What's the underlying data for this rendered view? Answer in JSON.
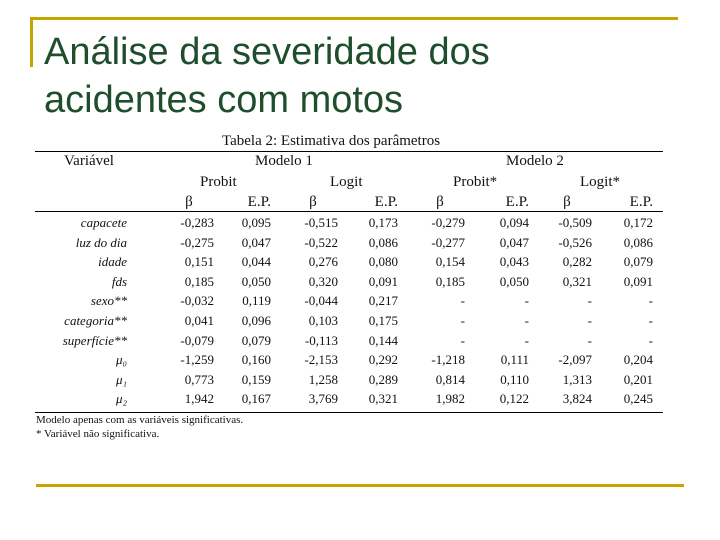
{
  "slide": {
    "title_line1": "Análise da severidade dos",
    "title_line2": "acidentes com motos"
  },
  "table": {
    "caption": "Tabela 2: Estimativa dos parâmetros",
    "header": {
      "variable": "Variável",
      "model1": "Modelo 1",
      "model2": "Modelo 2",
      "probit": "Probit",
      "logit": "Logit",
      "probit_star": "Probit*",
      "logit_star": "Logit*",
      "beta": "β",
      "ep": "E.P."
    },
    "rows": [
      {
        "var": "capacete",
        "v": [
          "-0,283",
          "0,095",
          "-0,515",
          "0,173",
          "-0,279",
          "0,094",
          "-0,509",
          "0,172"
        ]
      },
      {
        "var": "luz do dia",
        "v": [
          "-0,275",
          "0,047",
          "-0,522",
          "0,086",
          "-0,277",
          "0,047",
          "-0,526",
          "0,086"
        ]
      },
      {
        "var": "idade",
        "v": [
          "0,151",
          "0,044",
          "0,276",
          "0,080",
          "0,154",
          "0,043",
          "0,282",
          "0,079"
        ]
      },
      {
        "var": "fds",
        "v": [
          "0,185",
          "0,050",
          "0,320",
          "0,091",
          "0,185",
          "0,050",
          "0,321",
          "0,091"
        ]
      },
      {
        "var": "sexo**",
        "v": [
          "-0,032",
          "0,119",
          "-0,044",
          "0,217",
          "-",
          "-",
          "-",
          "-"
        ]
      },
      {
        "var": "categoria**",
        "v": [
          "0,041",
          "0,096",
          "0,103",
          "0,175",
          "-",
          "-",
          "-",
          "-"
        ]
      },
      {
        "var": "superfície**",
        "v": [
          "-0,079",
          "0,079",
          "-0,113",
          "0,144",
          "-",
          "-",
          "-",
          "-"
        ]
      },
      {
        "var": "μ₀",
        "v": [
          "-1,259",
          "0,160",
          "-2,153",
          "0,292",
          "-1,218",
          "0,111",
          "-2,097",
          "0,204"
        ]
      },
      {
        "var": "μ₁",
        "v": [
          "0,773",
          "0,159",
          "1,258",
          "0,289",
          "0,814",
          "0,110",
          "1,313",
          "0,201"
        ]
      },
      {
        "var": "μ₂",
        "v": [
          "1,942",
          "0,167",
          "3,769",
          "0,321",
          "1,982",
          "0,122",
          "3,824",
          "0,245"
        ]
      }
    ],
    "footnotes": [
      "Modelo apenas com as variáveis significativas.",
      "* Variável não significativa."
    ]
  }
}
